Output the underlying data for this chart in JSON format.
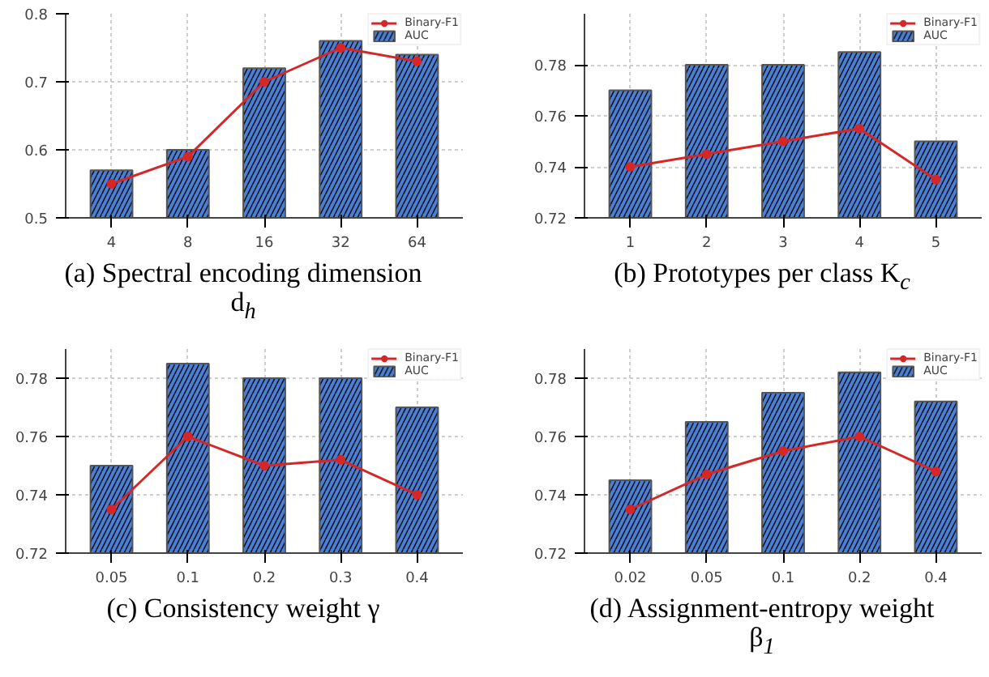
{
  "chart_data": [
    {
      "type": "bar",
      "title": "(a) Spectral encoding dimension d$_{h}$",
      "categories": [
        "4",
        "8",
        "16",
        "32",
        "64"
      ],
      "ylim": [
        0.5,
        0.8
      ],
      "yticks": [
        0.5,
        0.6,
        0.7,
        0.8
      ],
      "grid": true,
      "legend": "top right",
      "series": [
        {
          "name": "AUC",
          "type": "bar",
          "color": "#4a7fd8",
          "values": [
            0.57,
            0.6,
            0.72,
            0.76,
            0.74
          ]
        },
        {
          "name": "Binary-F1",
          "type": "line",
          "color": "#d62728",
          "marker": "circle",
          "values": [
            0.55,
            0.59,
            0.7,
            0.75,
            0.73
          ]
        }
      ]
    },
    {
      "type": "bar",
      "title": "(b) Prototypes per class K$_{c}$",
      "categories": [
        "1",
        "2",
        "3",
        "4",
        "5"
      ],
      "ylim": [
        0.72,
        0.8
      ],
      "yticks": [
        0.72,
        0.74,
        0.76,
        0.78
      ],
      "grid": true,
      "legend": "top right",
      "series": [
        {
          "name": "AUC",
          "type": "bar",
          "color": "#4a7fd8",
          "values": [
            0.77,
            0.78,
            0.78,
            0.785,
            0.75
          ]
        },
        {
          "name": "Binary-F1",
          "type": "line",
          "color": "#d62728",
          "marker": "circle",
          "values": [
            0.74,
            0.745,
            0.75,
            0.755,
            0.735
          ]
        }
      ]
    },
    {
      "type": "bar",
      "title": "(c) Consistency weight γ",
      "categories": [
        "0.05",
        "0.1",
        "0.2",
        "0.3",
        "0.4"
      ],
      "ylim": [
        0.72,
        0.79
      ],
      "yticks": [
        0.72,
        0.74,
        0.76,
        0.78
      ],
      "grid": true,
      "legend": "top right",
      "series": [
        {
          "name": "AUC",
          "type": "bar",
          "color": "#4a7fd8",
          "values": [
            0.75,
            0.785,
            0.78,
            0.78,
            0.77
          ]
        },
        {
          "name": "Binary-F1",
          "type": "line",
          "color": "#d62728",
          "marker": "circle",
          "values": [
            0.735,
            0.76,
            0.75,
            0.752,
            0.74
          ]
        }
      ]
    },
    {
      "type": "bar",
      "title": "(d) Assignment-entropy weight β$_{1}$",
      "categories": [
        "0.02",
        "0.05",
        "0.1",
        "0.2",
        "0.4"
      ],
      "ylim": [
        0.72,
        0.79
      ],
      "yticks": [
        0.72,
        0.74,
        0.76,
        0.78
      ],
      "grid": true,
      "legend": "top right",
      "series": [
        {
          "name": "AUC",
          "type": "bar",
          "color": "#4a7fd8",
          "values": [
            0.745,
            0.765,
            0.775,
            0.782,
            0.772
          ]
        },
        {
          "name": "Binary-F1",
          "type": "line",
          "color": "#d62728",
          "marker": "circle",
          "values": [
            0.735,
            0.747,
            0.755,
            0.76,
            0.748
          ]
        }
      ]
    }
  ]
}
